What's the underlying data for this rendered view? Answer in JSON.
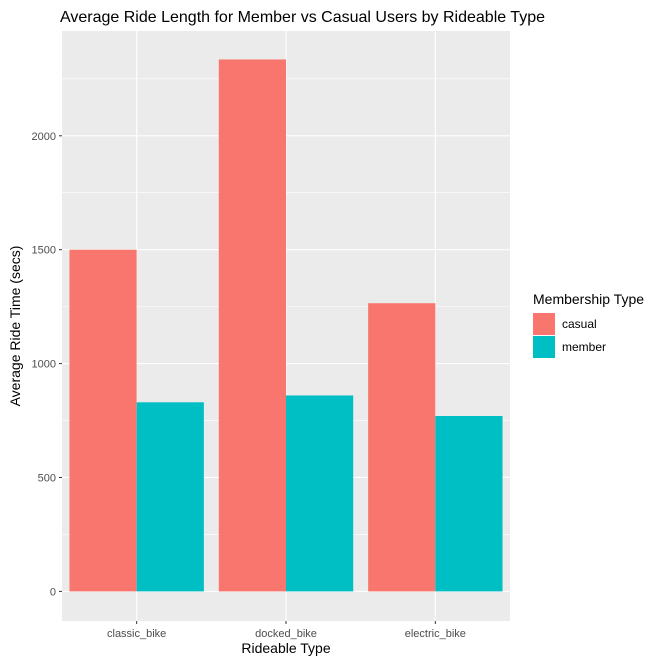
{
  "chart_data": {
    "type": "bar",
    "title": "Average Ride Length for Member vs Casual Users by Rideable Type",
    "xlabel": "Rideable Type",
    "ylabel": "Average Ride Time (secs)",
    "categories": [
      "classic_bike",
      "docked_bike",
      "electric_bike"
    ],
    "series": [
      {
        "name": "casual",
        "values": [
          1500,
          2335,
          1265
        ],
        "color": "#F8766D"
      },
      {
        "name": "member",
        "values": [
          830,
          860,
          770
        ],
        "color": "#00BFC4"
      }
    ],
    "ylim": [
      -130,
      2460
    ],
    "yticks": [
      0,
      500,
      1000,
      1500,
      2000
    ],
    "grid": true,
    "panel_background": "#EBEBEB",
    "legend": {
      "title": "Membership Type",
      "placement": "right"
    }
  }
}
